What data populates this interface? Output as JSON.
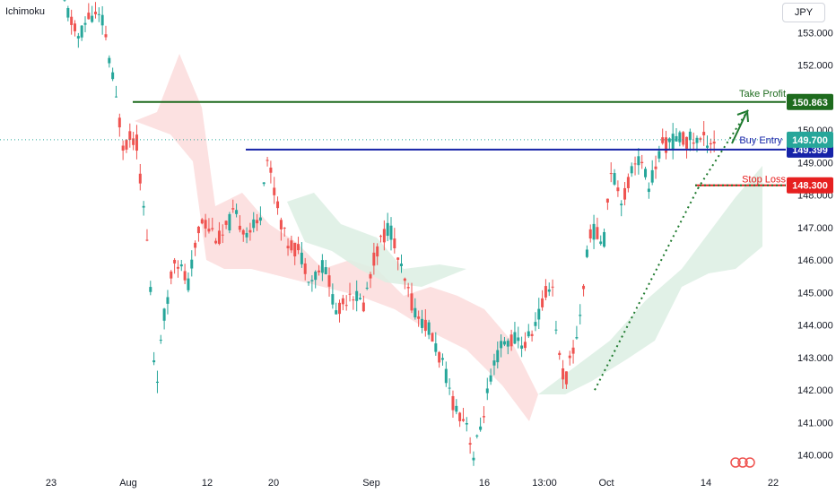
{
  "indicator_label": "Ichimoku",
  "currency_button": "JPY",
  "colors": {
    "up": "#26a69a",
    "down": "#ef5350",
    "cloud_bull": "#dcefe3",
    "cloud_bear": "#fbdcdc",
    "take_profit": "#1e6b1e",
    "buy_entry": "#1623a8",
    "stop_loss": "#e62020",
    "current_price": "#26a69a"
  },
  "chart_data": {
    "type": "candlestick",
    "y_ticks": [
      153.0,
      152.0,
      151.0,
      150.0,
      149.0,
      148.0,
      147.0,
      146.0,
      145.0,
      144.0,
      143.0,
      142.0,
      141.0,
      140.0
    ],
    "y_tick_labels": [
      "153.000",
      "152.000",
      "151.000",
      "150.000",
      "149.000",
      "148.000",
      "147.000",
      "146.000",
      "145.000",
      "144.000",
      "143.000",
      "142.000",
      "141.000",
      "140.000"
    ],
    "ylim": [
      139.55,
      154.0
    ],
    "x_ticks": [
      "23",
      "Aug",
      "12",
      "20",
      "Sep",
      "16",
      "13:00",
      "Oct",
      "14",
      "22"
    ],
    "levels": [
      {
        "name": "Take Profit",
        "value": 150.863,
        "label": "150.863"
      },
      {
        "name": "Buy Entry",
        "value": 149.399,
        "label": "149.399"
      },
      {
        "name": "Stop Loss",
        "value": 148.3,
        "label": "148.300"
      }
    ],
    "current_price": {
      "value": 149.7,
      "label": "149.700"
    },
    "annotations": [
      "Take Profit",
      "Buy Entry",
      "Stop Loss"
    ],
    "price_path": [
      [
        0,
        153.9
      ],
      [
        0.02,
        152.8
      ],
      [
        0.04,
        153.6
      ],
      [
        0.06,
        153.3
      ],
      [
        0.09,
        149.6
      ],
      [
        0.11,
        149.8
      ],
      [
        0.13,
        146.0
      ],
      [
        0.14,
        142.0
      ],
      [
        0.155,
        144.5
      ],
      [
        0.17,
        146.2
      ],
      [
        0.19,
        145.2
      ],
      [
        0.21,
        147.3
      ],
      [
        0.24,
        146.6
      ],
      [
        0.26,
        147.4
      ],
      [
        0.28,
        146.9
      ],
      [
        0.3,
        147.1
      ],
      [
        0.31,
        149.3
      ],
      [
        0.32,
        148.4
      ],
      [
        0.34,
        146.6
      ],
      [
        0.36,
        146.3
      ],
      [
        0.38,
        145.4
      ],
      [
        0.4,
        145.9
      ],
      [
        0.42,
        144.3
      ],
      [
        0.44,
        145.1
      ],
      [
        0.46,
        144.6
      ],
      [
        0.48,
        146.3
      ],
      [
        0.5,
        147.1
      ],
      [
        0.52,
        145.5
      ],
      [
        0.54,
        144.4
      ],
      [
        0.56,
        143.9
      ],
      [
        0.58,
        142.9
      ],
      [
        0.6,
        141.5
      ],
      [
        0.62,
        141.0
      ],
      [
        0.63,
        139.9
      ],
      [
        0.65,
        141.8
      ],
      [
        0.67,
        143.3
      ],
      [
        0.69,
        143.6
      ],
      [
        0.71,
        143.4
      ],
      [
        0.73,
        144.3
      ],
      [
        0.75,
        145.5
      ],
      [
        0.76,
        143.2
      ],
      [
        0.77,
        142.2
      ],
      [
        0.79,
        143.8
      ],
      [
        0.81,
        147.0
      ],
      [
        0.83,
        146.5
      ],
      [
        0.84,
        148.9
      ],
      [
        0.86,
        147.8
      ],
      [
        0.88,
        149.3
      ],
      [
        0.9,
        148.3
      ],
      [
        0.92,
        149.5
      ],
      [
        0.94,
        149.7
      ]
    ]
  }
}
